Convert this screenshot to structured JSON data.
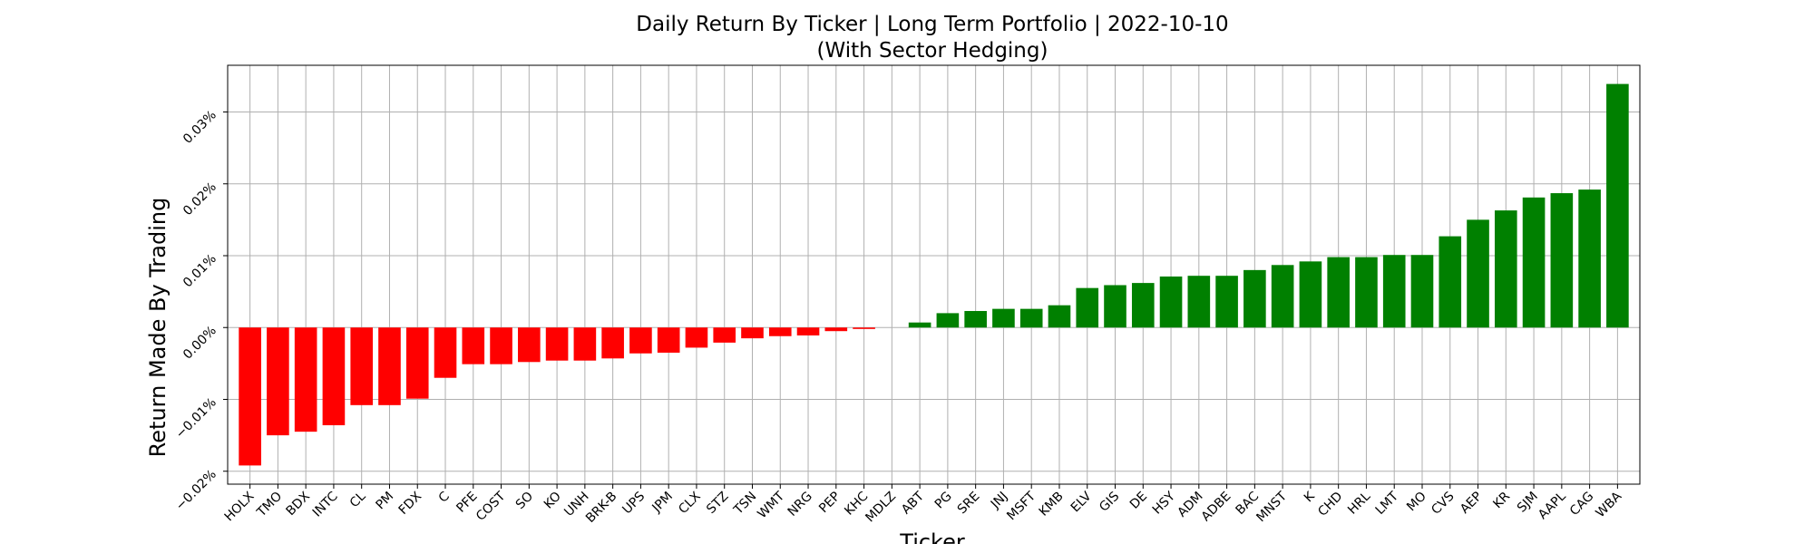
{
  "chart_data": {
    "type": "bar",
    "title": "Daily Return By Ticker | Long Term Portfolio | 2022-10-10",
    "subtitle": "(With Sector Hedging)",
    "xlabel": "Ticker",
    "ylabel": "Return Made By Trading",
    "ylim": [
      -0.0218,
      0.0365
    ],
    "yticks": [
      -0.02,
      -0.01,
      0.0,
      0.01,
      0.02,
      0.03
    ],
    "ytick_labels": [
      "−0.02%",
      "−0.01%",
      "0.00%",
      "0.01%",
      "0.02%",
      "0.03%"
    ],
    "grid": true,
    "positive_color": "#008000",
    "negative_color": "#ff0000",
    "categories": [
      "HOLX",
      "TMO",
      "BDX",
      "INTC",
      "CL",
      "PM",
      "FDX",
      "C",
      "PFE",
      "COST",
      "SO",
      "KO",
      "UNH",
      "BRK-B",
      "UPS",
      "JPM",
      "CLX",
      "STZ",
      "TSN",
      "WMT",
      "NRG",
      "PEP",
      "KHC",
      "MDLZ",
      "ABT",
      "PG",
      "SRE",
      "JNJ",
      "MSFT",
      "KMB",
      "ELV",
      "GIS",
      "DE",
      "HSY",
      "ADM",
      "ADBE",
      "BAC",
      "MNST",
      "K",
      "CHD",
      "HRL",
      "LMT",
      "MO",
      "CVS",
      "AEP",
      "KR",
      "SJM",
      "AAPL",
      "CAG",
      "WBA"
    ],
    "values": [
      -0.0192,
      -0.015,
      -0.0145,
      -0.0136,
      -0.0108,
      -0.0108,
      -0.0099,
      -0.007,
      -0.0051,
      -0.0051,
      -0.0048,
      -0.0046,
      -0.0046,
      -0.0043,
      -0.0036,
      -0.0035,
      -0.0028,
      -0.0021,
      -0.0015,
      -0.0012,
      -0.0011,
      -0.0005,
      -0.0002,
      0.0,
      0.0007,
      0.002,
      0.0023,
      0.0026,
      0.0026,
      0.0031,
      0.0055,
      0.0059,
      0.0062,
      0.0071,
      0.0072,
      0.0072,
      0.008,
      0.0087,
      0.0092,
      0.0098,
      0.0098,
      0.0101,
      0.0101,
      0.0127,
      0.015,
      0.0163,
      0.0181,
      0.0187,
      0.0192,
      0.0339
    ]
  }
}
